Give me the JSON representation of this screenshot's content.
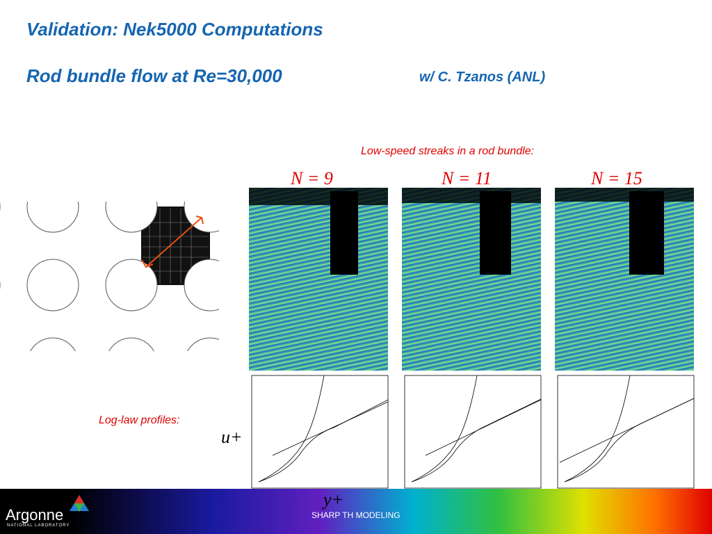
{
  "header": {
    "title": "Validation:  Nek5000 Computations",
    "subtitle": "Rod bundle flow at Re=30,000",
    "credit": "w/ C. Tzanos (ANL)"
  },
  "streaks": {
    "caption": "Low-speed streaks in a rod bundle:",
    "panels": [
      "N = 9",
      "N = 11",
      "N = 15"
    ]
  },
  "profiles": {
    "caption": "Log-law profiles:",
    "y_axis": "u+",
    "x_axis": "y+"
  },
  "footer": {
    "logo": "Argonne",
    "logo_sub": "NATIONAL LABORATORY",
    "center": "SHARP TH MODELING"
  }
}
